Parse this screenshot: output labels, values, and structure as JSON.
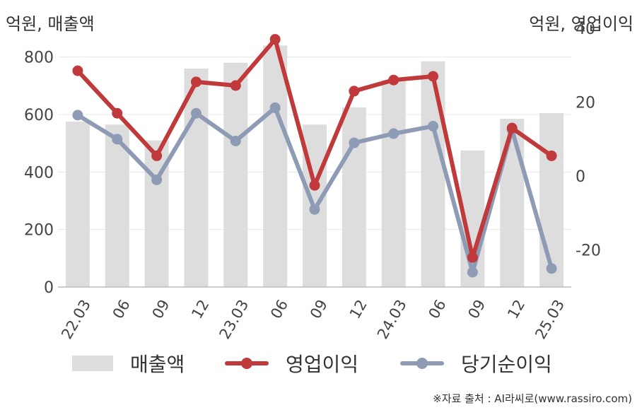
{
  "left_unit": "억원, 매출액",
  "right_unit": "억원, 영업이익",
  "source": "※자료 출처 : AI라씨로(www.rassiro.com)",
  "chart_data": {
    "type": "bar+line",
    "categories": [
      "22.03",
      "06",
      "09",
      "12",
      "23.03",
      "06",
      "09",
      "12",
      "24.03",
      "06",
      "09",
      "12",
      "25.03"
    ],
    "y_left": {
      "ticks": [
        0,
        200,
        400,
        600,
        800
      ],
      "range": [
        0,
        900
      ]
    },
    "y_right": {
      "ticks": [
        -20,
        0,
        20,
        40
      ],
      "range": [
        -30,
        40
      ]
    },
    "grid": true,
    "legend_position": "bottom",
    "series": [
      {
        "name": "매출액",
        "type": "bar",
        "axis": "left",
        "color": "#dddddd",
        "values": [
          575,
          565,
          510,
          760,
          780,
          840,
          565,
          625,
          720,
          785,
          475,
          585,
          605
        ]
      },
      {
        "name": "영업이익",
        "type": "line",
        "axis": "right",
        "color": "#c0393b",
        "values": [
          28.5,
          17,
          5.5,
          25.5,
          24.5,
          37,
          -2.5,
          23,
          26,
          27,
          -22,
          13,
          5.5
        ]
      },
      {
        "name": "당기순이익",
        "type": "line",
        "axis": "right",
        "color": "#8e9bb5",
        "values": [
          16.5,
          10,
          -1,
          17,
          9.5,
          18.5,
          -9,
          9,
          11.5,
          13.5,
          -26,
          12.5,
          -25
        ]
      }
    ]
  }
}
